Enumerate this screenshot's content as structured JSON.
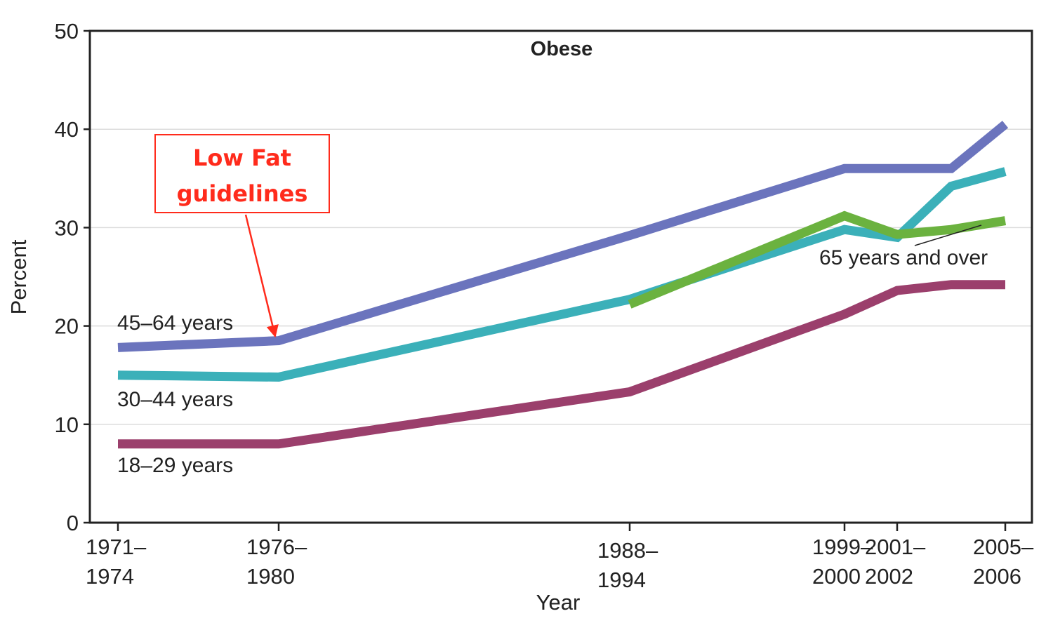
{
  "chart_data": {
    "type": "line",
    "title": "Obese",
    "xlabel": "Year",
    "ylabel": "Percent",
    "ylim": [
      0,
      50
    ],
    "yticks": [
      0,
      10,
      20,
      30,
      40,
      50
    ],
    "grid": true,
    "x_ticks": [
      {
        "x": 1972.5,
        "line1": "1971–",
        "line2": "1974"
      },
      {
        "x": 1978,
        "line1": "1976–",
        "line2": "1980"
      },
      {
        "x": 1991,
        "line1": "1988–",
        "line2": "1994"
      },
      {
        "x": 1999.5,
        "line1": "1999–",
        "line2": "2000"
      },
      {
        "x": 2001.5,
        "line1": "2001–",
        "line2": "2002"
      },
      {
        "x": 2005.5,
        "line1": "2005–",
        "line2": "2006"
      }
    ],
    "series": [
      {
        "name": "45–64 years",
        "color": "#6b74bd",
        "x": [
          1972.5,
          1978,
          1991,
          1999.5,
          2001.5,
          2003.5,
          2005.5
        ],
        "values": [
          17.8,
          18.5,
          29.2,
          36.0,
          36.0,
          36.0,
          40.5
        ]
      },
      {
        "name": "30–44 years",
        "color": "#3bb0b9",
        "x": [
          1972.5,
          1978,
          1991,
          1999.5,
          2001.5,
          2003.5,
          2005.5
        ],
        "values": [
          15.0,
          14.8,
          22.7,
          29.8,
          29.0,
          34.2,
          35.7
        ]
      },
      {
        "name": "65 years and over",
        "color": "#6bb23f",
        "x": [
          1991,
          1999.5,
          2001.5,
          2003.5,
          2005.5
        ],
        "values": [
          22.2,
          31.2,
          29.3,
          29.8,
          30.7
        ]
      },
      {
        "name": "18–29 years",
        "color": "#9b3f6c",
        "x": [
          1972.5,
          1978,
          1991,
          1999.5,
          2001.5,
          2003.5,
          2005.5
        ],
        "values": [
          8.0,
          8.0,
          13.3,
          21.2,
          23.6,
          24.2,
          24.2
        ]
      }
    ],
    "annotation": {
      "line1": "Low Fat",
      "line2": "guidelines",
      "color": "#ff2b1c",
      "points_to": {
        "x": 1978,
        "y": 19.8
      }
    }
  }
}
